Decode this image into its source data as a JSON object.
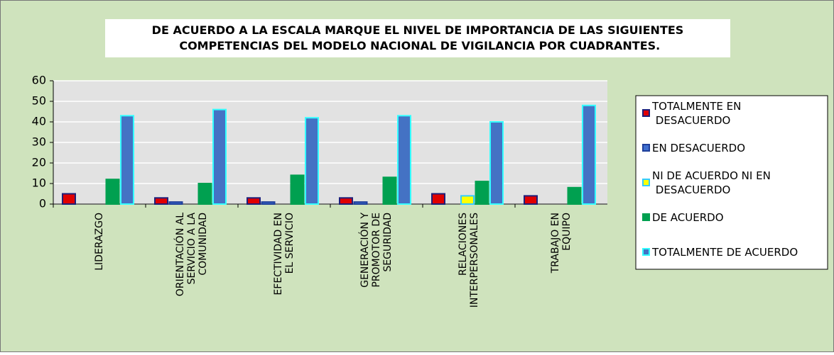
{
  "chart_data": {
    "type": "bar",
    "title": "DE ACUERDO A LA ESCALA MARQUE EL NIVEL DE IMPORTANCIA DE LAS SIGUIENTES COMPETENCIAS DEL MODELO NACIONAL DE VIGILANCIA POR CUADRANTES.",
    "categories": [
      "LIDERAZGO",
      "ORIENTACIÓN AL SERVICIO A LA COMUNIDAD",
      "EFECTIVIDAD EN EL SERVICIO",
      "GENERACIÓN Y PROMOTOR DE SEGURIDAD",
      "RELACIONES INTERPERSONALES",
      "TRABAJO EN EQUIPO"
    ],
    "series": [
      {
        "name": "TOTALMENTE EN DESACUERDO",
        "color": "#e00000",
        "edgecolor": "#1f1f7a",
        "values": [
          5,
          3,
          3,
          3,
          5,
          4
        ]
      },
      {
        "name": "EN DESACUERDO",
        "color": "#3f6fd0",
        "edgecolor": "#1f3f9a",
        "values": [
          0,
          1,
          1,
          1,
          0,
          0
        ]
      },
      {
        "name": "NI DE ACUERDO NI EN DESACUERDO",
        "color": "#ffff00",
        "edgecolor": "#33ccff",
        "values": [
          0,
          0,
          0,
          0,
          4,
          0
        ]
      },
      {
        "name": "DE ACUERDO",
        "color": "#00a050",
        "edgecolor": "#00a050",
        "values": [
          12,
          10,
          14,
          13,
          11,
          8
        ]
      },
      {
        "name": "TOTALMENTE DE ACUERDO",
        "color": "#4472c4",
        "edgecolor": "#33ffff",
        "values": [
          43,
          46,
          42,
          43,
          40,
          48
        ]
      }
    ],
    "ylim": [
      0,
      60
    ],
    "yticks": [
      0,
      10,
      20,
      30,
      40,
      50,
      60
    ],
    "grid": true,
    "legend": "right"
  }
}
